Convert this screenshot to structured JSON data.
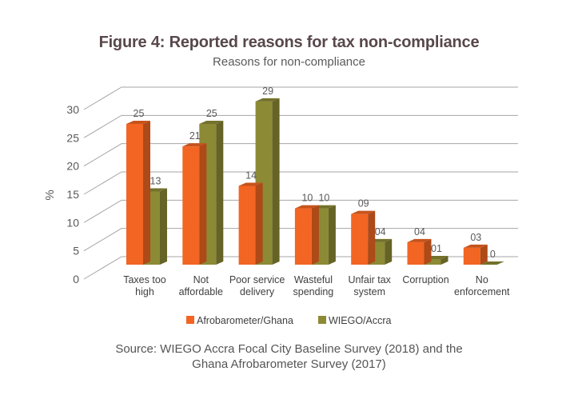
{
  "figure": {
    "title": "Figure 4: Reported reasons for tax non-compliance",
    "source_line1": "Source: WIEGO Accra Focal City Baseline Survey (2018) and the",
    "source_line2": "Ghana Afrobarometer Survey (2017)"
  },
  "chart_data": {
    "type": "bar",
    "style": "3d-clustered-column",
    "title": "Reasons for non-compliance",
    "xlabel": "",
    "ylabel": "%",
    "ylim": [
      0,
      30
    ],
    "yticks": [
      0,
      5,
      10,
      15,
      20,
      25,
      30
    ],
    "grid": true,
    "legend_position": "bottom",
    "categories": [
      [
        "Taxes too",
        "high"
      ],
      [
        "Not",
        "affordable"
      ],
      [
        "Poor service",
        "delivery"
      ],
      [
        "Wasteful",
        "spending"
      ],
      [
        "Unfair tax",
        "system"
      ],
      [
        "Corruption"
      ],
      [
        "No",
        "enforcement"
      ]
    ],
    "series": [
      {
        "name": "Afrobarometer/Ghana",
        "color": "#F26522",
        "values": [
          25,
          21,
          14,
          10,
          9,
          4,
          3
        ],
        "labels": [
          "25",
          "21",
          "14",
          "10",
          "09",
          "04",
          "03"
        ]
      },
      {
        "name": "WIEGO/Accra",
        "color": "#8C8A35",
        "values": [
          13,
          25,
          29,
          10,
          4,
          1,
          0
        ],
        "labels": [
          "13",
          "25",
          "29",
          "10",
          "04",
          "01",
          "0"
        ]
      }
    ]
  }
}
